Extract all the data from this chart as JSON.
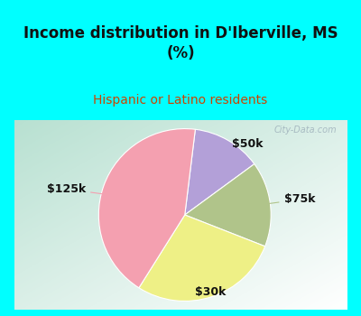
{
  "title": "Income distribution in D'Iberville, MS\n(%)",
  "subtitle": "Hispanic or Latino residents",
  "title_color": "#111111",
  "subtitle_color": "#cc4400",
  "header_bg": "#00ffff",
  "chart_bg_colors": [
    "#d4ede4",
    "#e8f5f0",
    "#f5faf8",
    "#f0f8ff"
  ],
  "border_color": "#00ffff",
  "slices": [
    {
      "label": "$50k",
      "value": 13,
      "color": "#b3a0d8"
    },
    {
      "label": "$75k",
      "value": 16,
      "color": "#b0c48a"
    },
    {
      "label": "$30k",
      "value": 28,
      "color": "#eef086"
    },
    {
      "label": "$125k",
      "value": 43,
      "color": "#f4a0b0"
    }
  ],
  "watermark": "City-Data.com",
  "label_fontsize": 9,
  "title_fontsize": 12,
  "subtitle_fontsize": 10
}
